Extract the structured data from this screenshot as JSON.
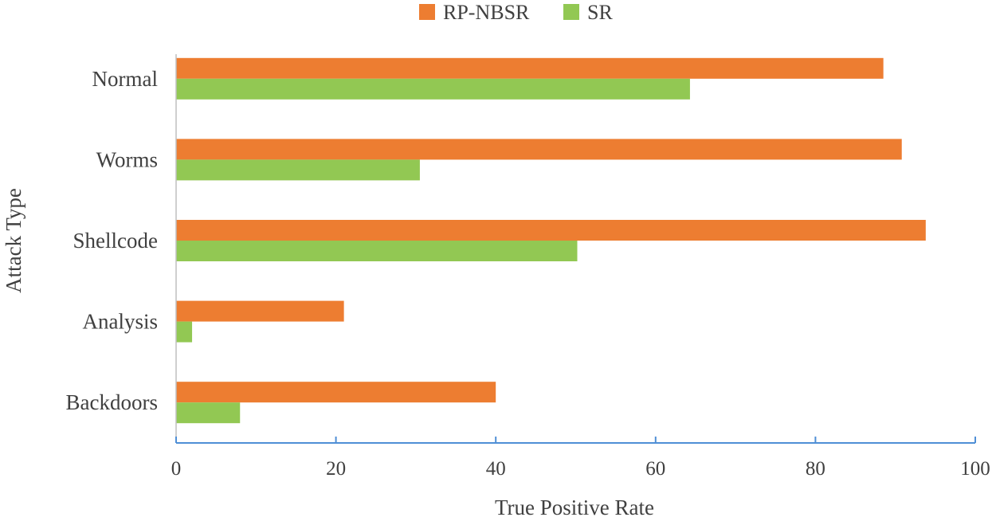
{
  "chart_data": {
    "type": "bar",
    "orientation": "horizontal",
    "categories": [
      "Normal",
      "Worms",
      "Shellcode",
      "Analysis",
      "Backdoors"
    ],
    "series": [
      {
        "name": "RP-NBSR",
        "color": "#ED7D31",
        "values": [
          88.5,
          90.8,
          93.8,
          21,
          40
        ]
      },
      {
        "name": "SR",
        "color": "#92C853",
        "values": [
          64.3,
          30.5,
          50.2,
          2,
          8
        ]
      }
    ],
    "xlabel": "True Positive Rate",
    "ylabel": "Attack Type",
    "xlim": [
      0,
      100
    ],
    "xticks": [
      "0",
      "20",
      "40",
      "60",
      "80",
      "100"
    ],
    "grid": false,
    "legend_position": "top-center",
    "axis_color": "#4F8FD6"
  }
}
